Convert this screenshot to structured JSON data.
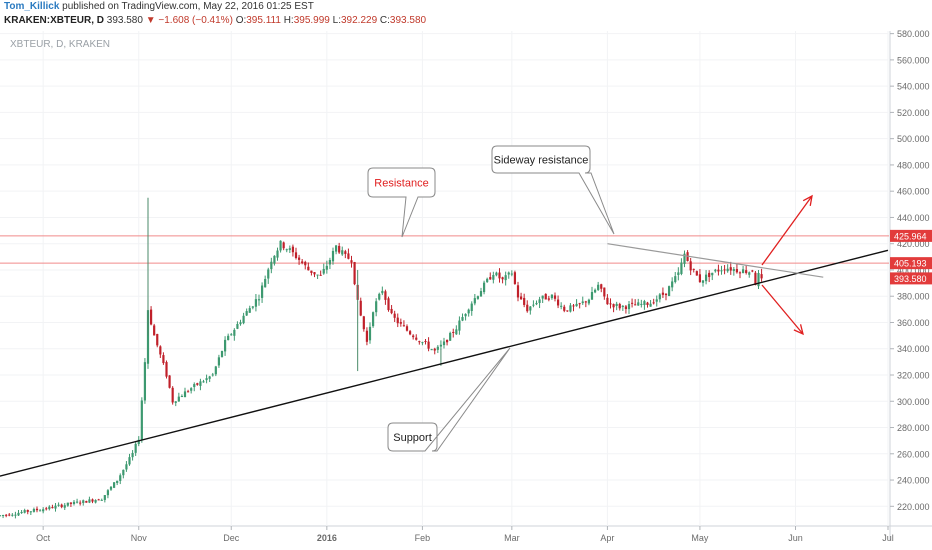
{
  "header": {
    "author": "Tom_Killick",
    "published": "published on TradingView.com, May 22, 2016 01:25 EST",
    "symbol": "KRAKEN:XBTEUR, D",
    "last": "393.580",
    "change": "−1.608 (−0.41%)",
    "open_label": "O:",
    "open": "395.111",
    "high_label": "H:",
    "high": "395.999",
    "low_label": "L:",
    "low": "392.229",
    "close_label": "C:",
    "close": "393.580",
    "watermark": "XBTEUR, D, KRAKEN"
  },
  "colors": {
    "up": "#3d9970",
    "down": "#c0202a",
    "resistance_line": "#f08a8a",
    "trendline": "#111111",
    "sideway_line": "#9a9a9a",
    "arrow": "#e02020",
    "axis_text": "#6b6b6b",
    "price_tag_red": "#e23b3b"
  },
  "chart_data": {
    "type": "candlestick",
    "ylim": [
      205,
      582
    ],
    "y_ticks": [
      220,
      240,
      260,
      280,
      300,
      320,
      340,
      360,
      380,
      400,
      420,
      440,
      460,
      480,
      500,
      520,
      540,
      560,
      580
    ],
    "y_tick_labels": [
      "220.000",
      "240.000",
      "260.000",
      "280.000",
      "300.000",
      "320.000",
      "340.000",
      "360.000",
      "380.000",
      "400.000",
      "420.000",
      "440.000",
      "460.000",
      "480.000",
      "500.000",
      "520.000",
      "540.000",
      "560.000",
      "580.000"
    ],
    "x_labels": [
      {
        "date": "2015-10-01",
        "label": "Oct"
      },
      {
        "date": "2015-11-01",
        "label": "Nov"
      },
      {
        "date": "2015-12-01",
        "label": "Dec"
      },
      {
        "date": "2016-01-01",
        "label": "2016"
      },
      {
        "date": "2016-02-01",
        "label": "Feb"
      },
      {
        "date": "2016-03-01",
        "label": "Mar"
      },
      {
        "date": "2016-04-01",
        "label": "Apr"
      },
      {
        "date": "2016-05-01",
        "label": "May"
      },
      {
        "date": "2016-06-01",
        "label": "Jun"
      },
      {
        "date": "2016-07-01",
        "label": "Jul"
      }
    ],
    "x_range": [
      "2015-09-17",
      "2016-07-01"
    ],
    "price_path": [
      [
        "2015-09-17",
        213
      ],
      [
        "2015-10-01",
        218
      ],
      [
        "2015-10-10",
        222
      ],
      [
        "2015-10-20",
        226
      ],
      [
        "2015-10-25",
        240
      ],
      [
        "2015-10-30",
        260
      ],
      [
        "2015-11-01",
        272
      ],
      [
        "2015-11-03",
        330
      ],
      [
        "2015-11-04",
        370
      ],
      [
        "2015-11-06",
        350
      ],
      [
        "2015-11-10",
        320
      ],
      [
        "2015-11-12",
        300
      ],
      [
        "2015-11-18",
        310
      ],
      [
        "2015-11-25",
        320
      ],
      [
        "2015-11-29",
        345
      ],
      [
        "2015-12-05",
        365
      ],
      [
        "2015-12-10",
        380
      ],
      [
        "2015-12-14",
        408
      ],
      [
        "2015-12-17",
        420
      ],
      [
        "2015-12-20",
        415
      ],
      [
        "2015-12-23",
        408
      ],
      [
        "2015-12-26",
        400
      ],
      [
        "2015-12-30",
        395
      ],
      [
        "2016-01-02",
        408
      ],
      [
        "2016-01-04",
        418
      ],
      [
        "2016-01-07",
        410
      ],
      [
        "2016-01-09",
        408
      ],
      [
        "2016-01-11",
        375
      ],
      [
        "2016-01-14",
        345
      ],
      [
        "2016-01-16",
        370
      ],
      [
        "2016-01-19",
        385
      ],
      [
        "2016-01-22",
        365
      ],
      [
        "2016-01-25",
        358
      ],
      [
        "2016-01-28",
        352
      ],
      [
        "2016-02-01",
        345
      ],
      [
        "2016-02-05",
        338
      ],
      [
        "2016-02-08",
        344
      ],
      [
        "2016-02-12",
        356
      ],
      [
        "2016-02-16",
        372
      ],
      [
        "2016-02-20",
        385
      ],
      [
        "2016-02-24",
        398
      ],
      [
        "2016-02-27",
        392
      ],
      [
        "2016-03-01",
        398
      ],
      [
        "2016-03-03",
        380
      ],
      [
        "2016-03-06",
        370
      ],
      [
        "2016-03-10",
        378
      ],
      [
        "2016-03-14",
        380
      ],
      [
        "2016-03-18",
        370
      ],
      [
        "2016-03-22",
        372
      ],
      [
        "2016-03-26",
        378
      ],
      [
        "2016-03-29",
        388
      ],
      [
        "2016-04-01",
        375
      ],
      [
        "2016-04-05",
        372
      ],
      [
        "2016-04-10",
        373
      ],
      [
        "2016-04-15",
        375
      ],
      [
        "2016-04-20",
        383
      ],
      [
        "2016-04-24",
        397
      ],
      [
        "2016-04-26",
        412
      ],
      [
        "2016-04-28",
        402
      ],
      [
        "2016-05-01",
        392
      ],
      [
        "2016-05-05",
        398
      ],
      [
        "2016-05-09",
        402
      ],
      [
        "2016-05-13",
        400
      ],
      [
        "2016-05-17",
        399
      ],
      [
        "2016-05-18",
        400
      ],
      [
        "2016-05-19",
        390
      ],
      [
        "2016-05-20",
        396
      ],
      [
        "2016-05-21",
        393.58
      ]
    ],
    "spikes": [
      {
        "date": "2015-11-04",
        "high": 455,
        "low": 350
      },
      {
        "date": "2016-01-11",
        "high": 400,
        "low": 323
      },
      {
        "date": "2016-02-07",
        "high": 340,
        "low": 327
      }
    ],
    "horizontal_lines": [
      {
        "label": "425.964",
        "value": 425.964
      },
      {
        "label": "405.193",
        "value": 405.193
      }
    ],
    "last_price_tag": {
      "label": "393.580",
      "value": 393.58
    },
    "support_line": {
      "from": [
        "2015-09-17",
        243
      ],
      "to": [
        "2016-07-01",
        415
      ]
    },
    "sideway_line": {
      "from": [
        "2016-04-01",
        420
      ],
      "to": [
        "2016-06-10",
        394.5
      ]
    },
    "annotations": [
      {
        "text": "Resistance",
        "color": "#e02020"
      },
      {
        "text": "Sideway resistance",
        "color": "#222222"
      },
      {
        "text": "Support",
        "color": "#222222"
      }
    ]
  }
}
